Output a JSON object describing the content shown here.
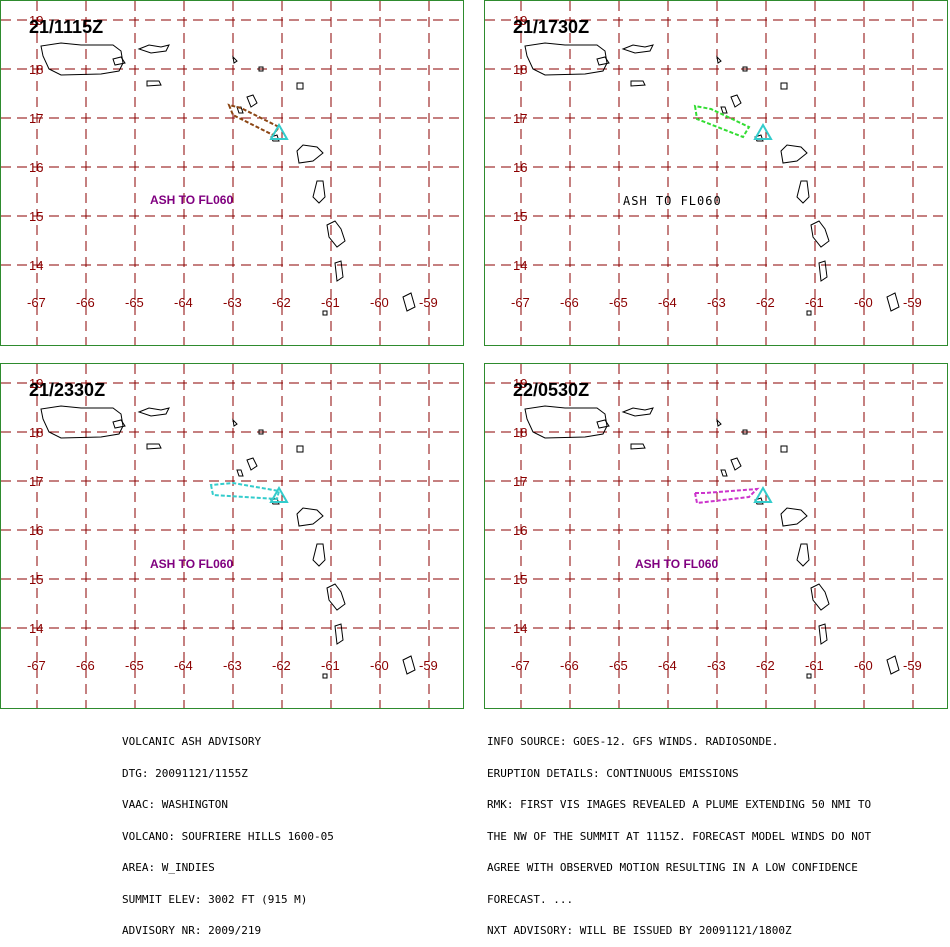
{
  "panels": [
    {
      "time": "21/1115Z",
      "ash_label": "ASH TO FL060",
      "ash_color": "#8b4513",
      "label_color": "#800080",
      "label_style": "bold"
    },
    {
      "time": "21/1730Z",
      "ash_label": "ASH TO FL060",
      "ash_color": "#33dd33",
      "label_color": "#000000",
      "label_style": "mono"
    },
    {
      "time": "21/2330Z",
      "ash_label": "ASH TO FL060",
      "ash_color": "#33cccc",
      "label_color": "#800080",
      "label_style": "bold"
    },
    {
      "time": "22/0530Z",
      "ash_label": "ASH TO FL060",
      "ash_color": "#cc33cc",
      "label_color": "#800080",
      "label_style": "bold"
    }
  ],
  "map": {
    "latitudes": [
      "19",
      "18",
      "17",
      "16",
      "15",
      "14"
    ],
    "longitudes": [
      "-67",
      "-66",
      "-65",
      "-64",
      "-63",
      "-62",
      "-61",
      "-60",
      "-59"
    ],
    "grid_color": "#8b0000",
    "vent_color": "#33cccc"
  },
  "advisory_left": [
    "VOLCANIC ASH ADVISORY",
    "DTG: 20091121/1155Z",
    "VAAC: WASHINGTON",
    "VOLCANO: SOUFRIERE HILLS 1600-05",
    "AREA: W_INDIES",
    "SUMMIT ELEV: 3002 FT (915 M)",
    "ADVISORY NR: 2009/219"
  ],
  "advisory_right": [
    "INFO SOURCE: GOES-12. GFS WINDS. RADIOSONDE.",
    "ERUPTION DETAILS: CONTINUOUS EMISSIONS",
    "RMK: FIRST VIS IMAGES REVEALED A PLUME EXTENDING 50 NMI TO",
    "THE NW OF THE SUMMIT AT 1115Z. FORECAST MODEL WINDS DO NOT",
    "AGREE WITH OBSERVED MOTION RESULTING IN A LOW CONFIDENCE",
    "FORECAST. ...",
    "NXT ADVISORY: WILL BE ISSUED BY 20091121/1800Z"
  ]
}
